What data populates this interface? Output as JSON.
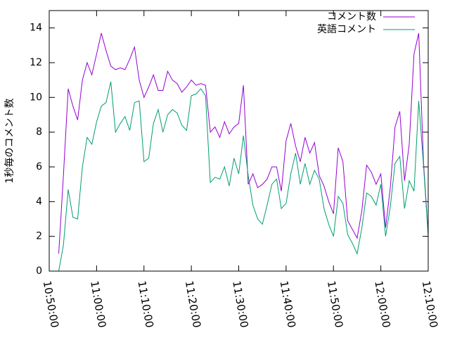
{
  "chart_data": {
    "type": "line",
    "ylabel": "1秒毎のコメント数",
    "x": [
      "10:52:00",
      "10:53:00",
      "10:54:00",
      "10:55:00",
      "10:56:00",
      "10:57:00",
      "10:58:00",
      "10:59:00",
      "11:00:00",
      "11:01:00",
      "11:02:00",
      "11:03:00",
      "11:04:00",
      "11:05:00",
      "11:06:00",
      "11:07:00",
      "11:08:00",
      "11:09:00",
      "11:10:00",
      "11:11:00",
      "11:12:00",
      "11:13:00",
      "11:14:00",
      "11:15:00",
      "11:16:00",
      "11:17:00",
      "11:18:00",
      "11:19:00",
      "11:20:00",
      "11:21:00",
      "11:22:00",
      "11:23:00",
      "11:24:00",
      "11:25:00",
      "11:26:00",
      "11:27:00",
      "11:28:00",
      "11:29:00",
      "11:30:00",
      "11:31:00",
      "11:32:00",
      "11:33:00",
      "11:34:00",
      "11:35:00",
      "11:36:00",
      "11:37:00",
      "11:38:00",
      "11:39:00",
      "11:40:00",
      "11:41:00",
      "11:42:00",
      "11:43:00",
      "11:44:00",
      "11:45:00",
      "11:46:00",
      "11:47:00",
      "11:48:00",
      "11:49:00",
      "11:50:00",
      "11:51:00",
      "11:52:00",
      "11:53:00",
      "11:54:00",
      "11:55:00",
      "11:56:00",
      "11:57:00",
      "11:58:00",
      "11:59:00",
      "12:00:00",
      "12:01:00",
      "12:02:00",
      "12:03:00",
      "12:04:00",
      "12:05:00",
      "12:06:00",
      "12:07:00",
      "12:08:00",
      "12:09:00",
      "12:10:00"
    ],
    "series": [
      {
        "name": "コメント数",
        "color": "#9400d3",
        "values": [
          1.0,
          5.5,
          10.5,
          9.5,
          8.7,
          11.0,
          12.0,
          11.3,
          12.5,
          13.7,
          12.7,
          11.8,
          11.6,
          11.7,
          11.6,
          12.2,
          12.9,
          11.0,
          10.0,
          10.6,
          11.3,
          10.4,
          10.4,
          11.5,
          11.0,
          10.8,
          10.3,
          10.6,
          11.0,
          10.7,
          10.8,
          10.7,
          8.0,
          8.3,
          7.7,
          8.6,
          7.9,
          8.3,
          8.5,
          10.7,
          5.0,
          5.6,
          4.8,
          5.0,
          5.3,
          6.0,
          6.0,
          4.6,
          7.5,
          8.5,
          7.2,
          6.3,
          7.7,
          6.8,
          7.4,
          5.5,
          4.9,
          4.0,
          3.3,
          7.1,
          6.3,
          2.9,
          2.4,
          1.9,
          3.5,
          6.1,
          5.7,
          5.0,
          5.6,
          2.5,
          4.8,
          8.3,
          9.2,
          5.2,
          7.3,
          12.5,
          13.7,
          6.3,
          2.1
        ]
      },
      {
        "name": "英語コメント",
        "color": "#009e73",
        "values": [
          0.0,
          1.5,
          4.7,
          3.1,
          3.0,
          6.0,
          7.7,
          7.3,
          8.6,
          9.5,
          9.7,
          10.9,
          8.0,
          8.5,
          8.9,
          8.1,
          9.7,
          9.8,
          6.3,
          6.5,
          8.5,
          9.3,
          8.0,
          9.0,
          9.3,
          9.1,
          8.4,
          8.1,
          10.1,
          10.2,
          10.5,
          10.1,
          5.1,
          5.4,
          5.3,
          6.0,
          4.9,
          6.5,
          5.6,
          7.8,
          5.5,
          3.8,
          3.0,
          2.7,
          3.8,
          5.0,
          5.3,
          3.6,
          3.9,
          5.6,
          6.8,
          5.0,
          6.2,
          5.0,
          5.8,
          5.3,
          3.6,
          2.7,
          2.0,
          4.3,
          3.9,
          2.1,
          1.6,
          1.0,
          2.5,
          4.5,
          4.3,
          3.8,
          5.0,
          2.0,
          3.7,
          6.2,
          6.6,
          3.6,
          5.2,
          4.6,
          9.8,
          6.1,
          2.0
        ]
      }
    ],
    "xlim": [
      "10:50:00",
      "12:10:00"
    ],
    "xticks": [
      "10:50:00",
      "11:00:00",
      "11:10:00",
      "11:20:00",
      "11:30:00",
      "11:40:00",
      "11:50:00",
      "12:00:00",
      "12:10:00"
    ],
    "ylim": [
      0,
      15
    ],
    "yticks": [
      0,
      2,
      4,
      6,
      8,
      10,
      12,
      14
    ],
    "legend": "top-right"
  }
}
